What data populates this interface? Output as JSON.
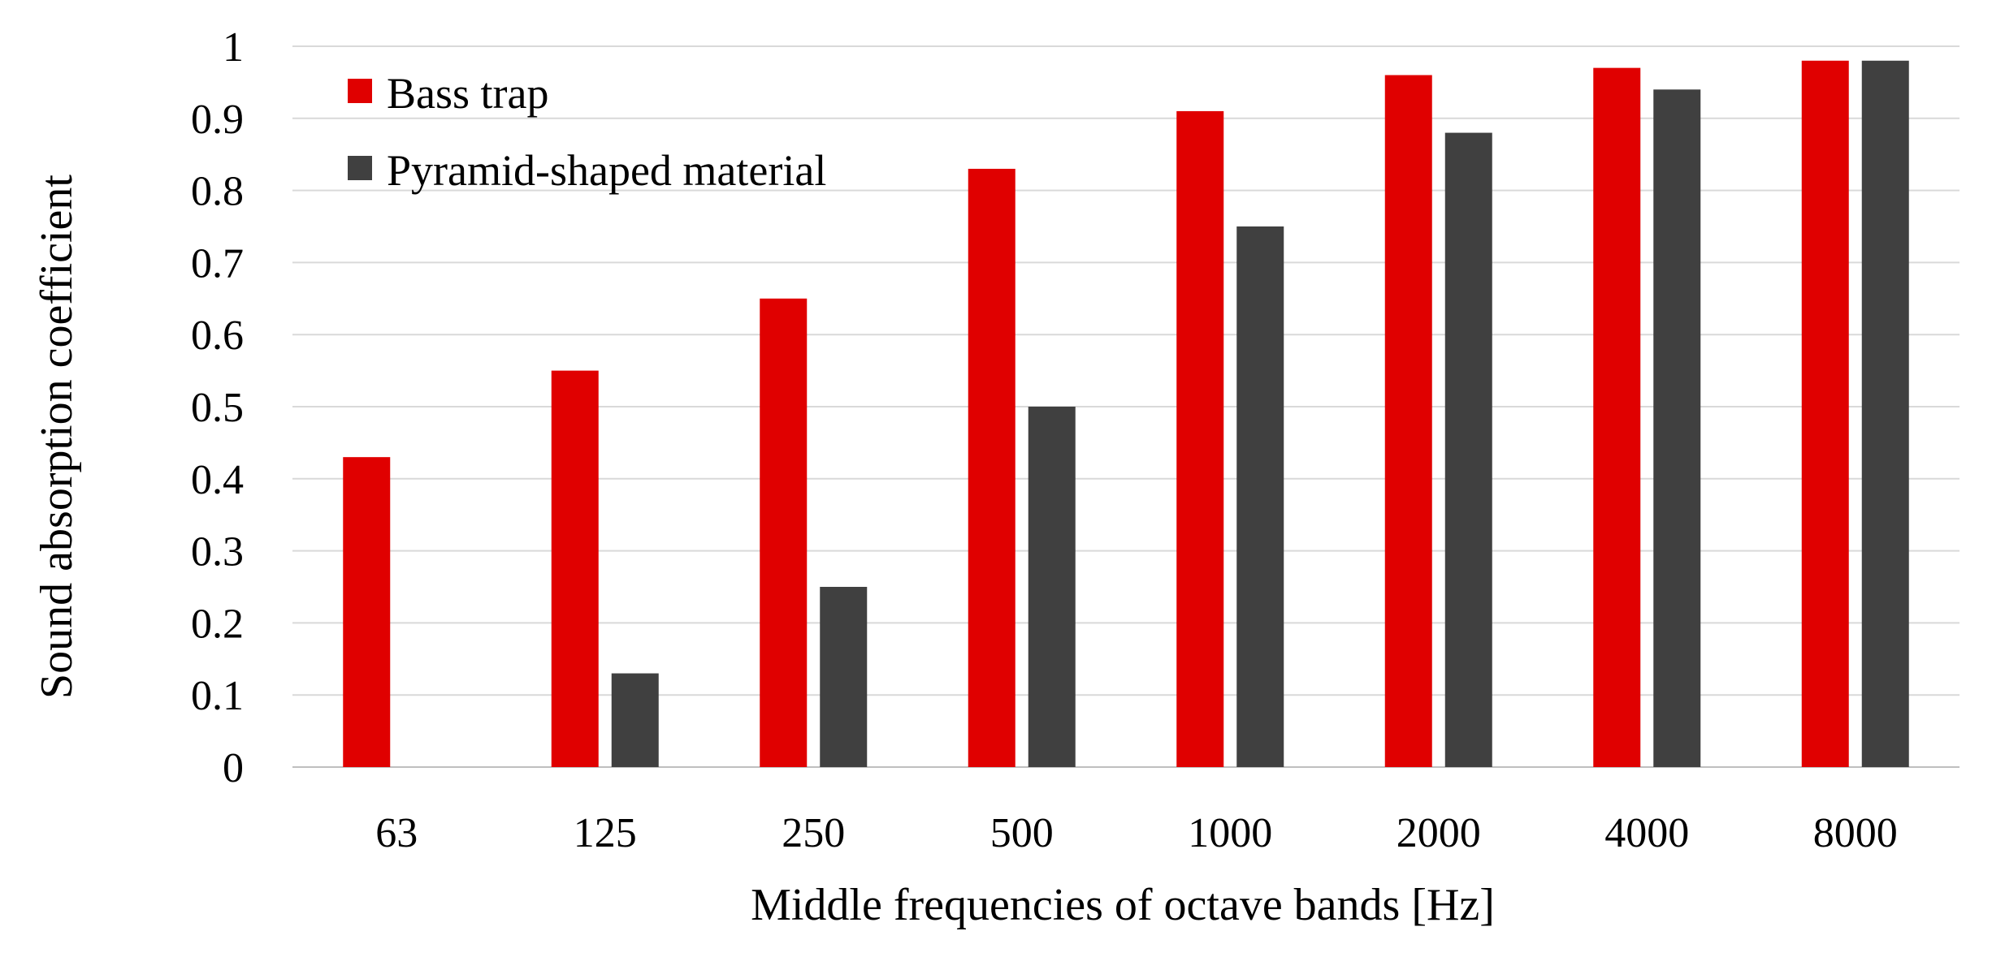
{
  "chart_data": {
    "type": "bar",
    "title": "",
    "xlabel": "Middle frequencies of octave bands [Hz]",
    "ylabel": "Sound absorption coefficient",
    "categories": [
      "63",
      "125",
      "250",
      "500",
      "1000",
      "2000",
      "4000",
      "8000"
    ],
    "series": [
      {
        "name": "Bass trap",
        "color": "#e00000",
        "values": [
          0.43,
          0.55,
          0.65,
          0.83,
          0.91,
          0.96,
          0.97,
          0.98
        ]
      },
      {
        "name": "Pyramid-shaped material",
        "color": "#404040",
        "values": [
          0,
          0.13,
          0.25,
          0.5,
          0.75,
          0.88,
          0.94,
          0.98
        ]
      }
    ],
    "ylim": [
      0,
      1
    ],
    "yticks": [
      "0",
      "0.1",
      "0.2",
      "0.3",
      "0.4",
      "0.5",
      "0.6",
      "0.7",
      "0.8",
      "0.9",
      "1"
    ],
    "grid": true,
    "legend_position": "top-left",
    "gridline_color": "#d9d9d9"
  }
}
